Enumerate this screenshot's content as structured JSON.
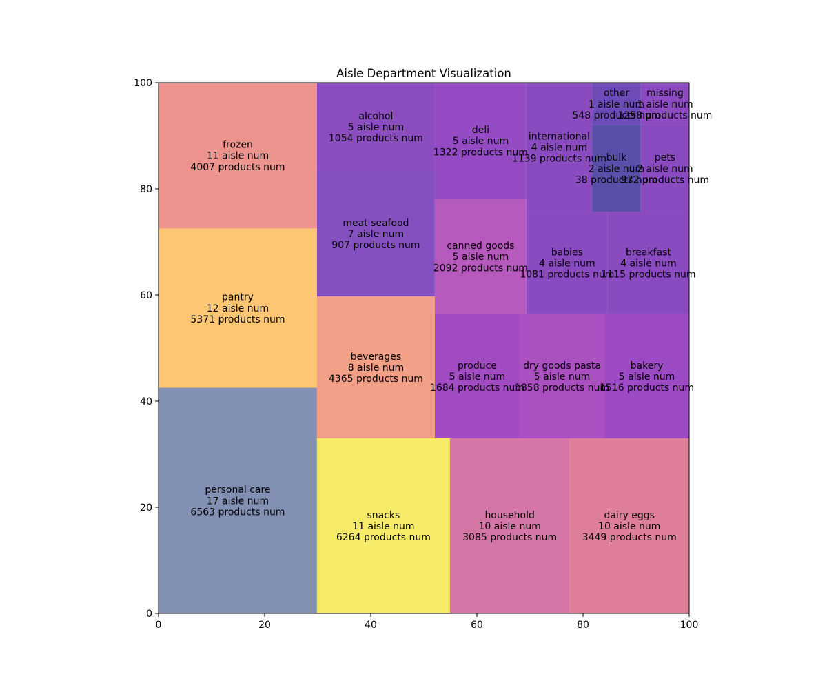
{
  "chart_data": {
    "type": "treemap",
    "title": "Aisle Department Visualization",
    "xlabel": "",
    "ylabel": "",
    "xlim": [
      0,
      100
    ],
    "ylim": [
      0,
      100
    ],
    "x_ticks": [
      0,
      20,
      40,
      60,
      80,
      100
    ],
    "y_ticks": [
      0,
      20,
      40,
      60,
      80,
      100
    ],
    "grid": false,
    "tiles": [
      {
        "label": "personal care",
        "aisle_num": 17,
        "products_num": 6563,
        "x": 0,
        "y": 0,
        "dx": 29.86,
        "dy": 42.53,
        "color": "#8290b3"
      },
      {
        "label": "pantry",
        "aisle_num": 12,
        "products_num": 5371,
        "x": 0,
        "y": 42.53,
        "dx": 29.86,
        "dy": 30.02,
        "color": "#fdc672"
      },
      {
        "label": "frozen",
        "aisle_num": 11,
        "products_num": 4007,
        "x": 0,
        "y": 72.55,
        "dx": 29.86,
        "dy": 27.45,
        "color": "#ec938e"
      },
      {
        "label": "snacks",
        "aisle_num": 11,
        "products_num": 6264,
        "x": 29.86,
        "y": 0,
        "dx": 25.06,
        "dy": 32.99,
        "color": "#f5eb69"
      },
      {
        "label": "household",
        "aisle_num": 10,
        "products_num": 3085,
        "x": 54.92,
        "y": 0,
        "dx": 22.54,
        "dy": 32.99,
        "color": "#d476a5"
      },
      {
        "label": "dairy eggs",
        "aisle_num": 10,
        "products_num": 3449,
        "x": 77.46,
        "y": 0,
        "dx": 22.54,
        "dy": 32.99,
        "color": "#de7e99"
      },
      {
        "label": "beverages",
        "aisle_num": 8,
        "products_num": 4365,
        "x": 29.86,
        "y": 32.99,
        "dx": 22.21,
        "dy": 26.75,
        "color": "#f1a087"
      },
      {
        "label": "meat seafood",
        "aisle_num": 7,
        "products_num": 907,
        "x": 29.86,
        "y": 59.74,
        "dx": 22.21,
        "dy": 23.64,
        "color": "#844fbe"
      },
      {
        "label": "alcohol",
        "aisle_num": 5,
        "products_num": 1054,
        "x": 29.86,
        "y": 83.38,
        "dx": 22.21,
        "dy": 16.62,
        "color": "#8a4cbf"
      },
      {
        "label": "produce",
        "aisle_num": 5,
        "products_num": 1684,
        "x": 52.07,
        "y": 32.99,
        "dx": 15.98,
        "dy": 23.38,
        "color": "#a24cc3"
      },
      {
        "label": "dry goods pasta",
        "aisle_num": 5,
        "products_num": 1858,
        "x": 68.05,
        "y": 32.99,
        "dx": 15.98,
        "dy": 23.38,
        "color": "#aa50c1"
      },
      {
        "label": "bakery",
        "aisle_num": 5,
        "products_num": 1516,
        "x": 84.03,
        "y": 32.99,
        "dx": 15.97,
        "dy": 23.38,
        "color": "#9c4bc4"
      },
      {
        "label": "canned goods",
        "aisle_num": 5,
        "products_num": 2092,
        "x": 52.07,
        "y": 56.37,
        "dx": 17.26,
        "dy": 21.76,
        "color": "#b65abd"
      },
      {
        "label": "deli",
        "aisle_num": 5,
        "products_num": 1322,
        "x": 52.07,
        "y": 78.13,
        "dx": 17.26,
        "dy": 21.87,
        "color": "#944bc3"
      },
      {
        "label": "babies",
        "aisle_num": 4,
        "products_num": 1081,
        "x": 69.33,
        "y": 56.37,
        "dx": 15.33,
        "dy": 19.34,
        "color": "#8a4ac0"
      },
      {
        "label": "breakfast",
        "aisle_num": 4,
        "products_num": 1115,
        "x": 84.66,
        "y": 56.37,
        "dx": 15.34,
        "dy": 19.34,
        "color": "#8b4bc0"
      },
      {
        "label": "international",
        "aisle_num": 4,
        "products_num": 1139,
        "x": 69.33,
        "y": 75.71,
        "dx": 12.37,
        "dy": 24.29,
        "color": "#8a4bc0"
      },
      {
        "label": "bulk",
        "aisle_num": 2,
        "products_num": 38,
        "x": 81.7,
        "y": 75.71,
        "dx": 9.19,
        "dy": 16.29,
        "color": "#5850a8"
      },
      {
        "label": "pets",
        "aisle_num": 2,
        "products_num": 972,
        "x": 90.89,
        "y": 75.71,
        "dx": 9.11,
        "dy": 16.29,
        "color": "#8a4bc0"
      },
      {
        "label": "other",
        "aisle_num": 1,
        "products_num": 548,
        "x": 81.7,
        "y": 92.0,
        "dx": 9.19,
        "dy": 8.0,
        "color": "#6d4cb7"
      },
      {
        "label": "missing",
        "aisle_num": 1,
        "products_num": 1258,
        "x": 90.89,
        "y": 92.0,
        "dx": 9.11,
        "dy": 8.0,
        "color": "#8c4bc0"
      }
    ],
    "line2_suffix": "aisle num",
    "line3_suffix": "products num"
  }
}
